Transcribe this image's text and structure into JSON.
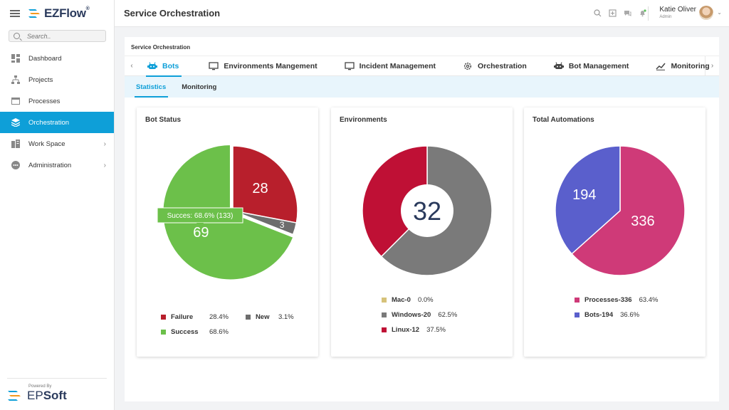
{
  "app": {
    "logo": "EZFlow",
    "title": "Service Orchestration"
  },
  "search": {
    "placeholder": "Search.."
  },
  "sidebar": {
    "items": [
      {
        "label": "Dashboard",
        "icon": "dashboard-icon"
      },
      {
        "label": "Projects",
        "icon": "projects-icon"
      },
      {
        "label": "Processes",
        "icon": "processes-icon"
      },
      {
        "label": "Orchestration",
        "icon": "orchestration-icon",
        "active": true
      },
      {
        "label": "Work Space",
        "icon": "workspace-icon",
        "expandable": true
      },
      {
        "label": "Administration",
        "icon": "administration-icon",
        "expandable": true
      }
    ],
    "powered_by": "Powered By",
    "company_a": "EP",
    "company_b": "Soft"
  },
  "user": {
    "name": "Katie Oliver",
    "role": "Admin"
  },
  "breadcrumb": "Service Orchestration",
  "tabs": [
    {
      "label": "Bots",
      "icon": "bot-icon",
      "active": true
    },
    {
      "label": "Environments Mangement",
      "icon": "monitor-icon"
    },
    {
      "label": "Incident Management",
      "icon": "monitor-icon"
    },
    {
      "label": "Orchestration",
      "icon": "gear-icon"
    },
    {
      "label": "Bot Management",
      "icon": "bot-icon"
    },
    {
      "label": "Monitoring",
      "icon": "trend-icon"
    }
  ],
  "subtabs": [
    {
      "label": "Statistics",
      "active": true
    },
    {
      "label": "Monitoring"
    }
  ],
  "colors": {
    "accent": "#0e9fd8",
    "failure": "#b81f2c",
    "new": "#6d6d6d",
    "success": "#6cc04a",
    "mac": "#d6c27a",
    "windows": "#7a7a7a",
    "linux": "#bf1035",
    "processes": "#cf3a78",
    "bots": "#5a5fcc"
  },
  "chart_data": [
    {
      "type": "pie",
      "title": "Bot Status",
      "series": [
        {
          "name": "Failure",
          "value": 28,
          "percent": "28.4%"
        },
        {
          "name": "New",
          "value": 3,
          "percent": "3.1%"
        },
        {
          "name": "Success",
          "value": 69,
          "percent": "68.6%"
        }
      ],
      "tooltip": "Succes: 68.6% (133)"
    },
    {
      "type": "pie",
      "title": "Environments",
      "center_label": "32",
      "series": [
        {
          "name": "Mac-0",
          "value": 0,
          "percent": "0.0%"
        },
        {
          "name": "Windows-20",
          "value": 20,
          "percent": "62.5%"
        },
        {
          "name": "Linux-12",
          "value": 12,
          "percent": "37.5%"
        }
      ]
    },
    {
      "type": "pie",
      "title": "Total Automations",
      "series": [
        {
          "name": "Processes-336",
          "value": 336,
          "percent": "63.4%"
        },
        {
          "name": "Bots-194",
          "value": 194,
          "percent": "36.6%"
        }
      ]
    }
  ]
}
